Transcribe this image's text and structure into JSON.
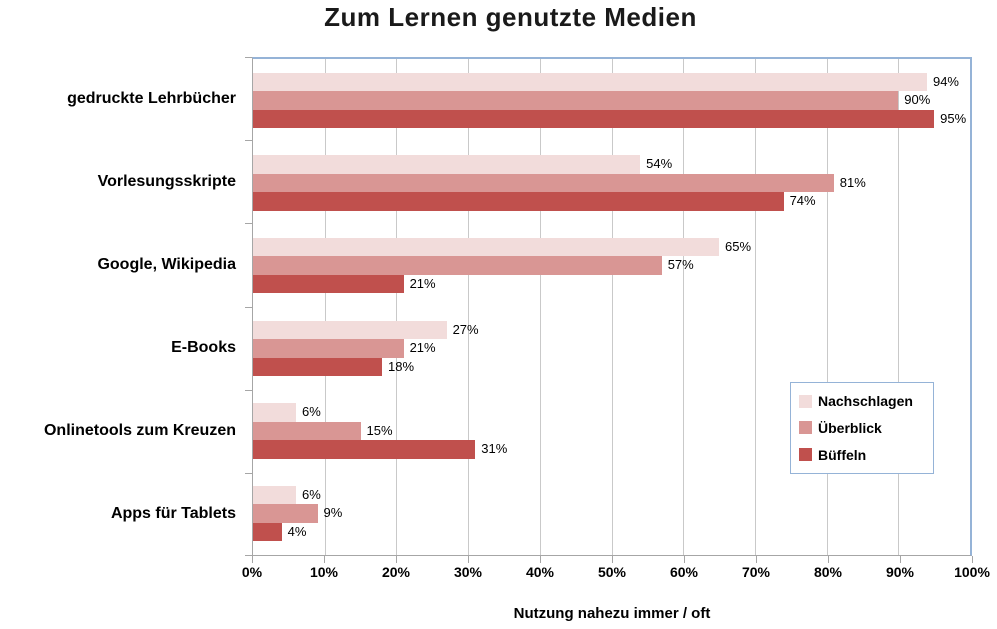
{
  "title": "Zum Lernen genutzte Medien",
  "chart_data": {
    "type": "bar",
    "orientation": "horizontal",
    "title": "Zum Lernen genutzte Medien",
    "xlabel": "Nutzung nahezu immer / oft",
    "ylabel": "",
    "categories": [
      "gedruckte Lehrbücher",
      "Vorlesungsskripte",
      "Google, Wikipedia",
      "E-Books",
      "Onlinetools zum Kreuzen",
      "Apps für Tablets"
    ],
    "series": [
      {
        "name": "Nachschlagen",
        "color": "#f2dcdb",
        "values": [
          94,
          54,
          65,
          27,
          6,
          6
        ]
      },
      {
        "name": "Überblick",
        "color": "#d99694",
        "values": [
          90,
          81,
          57,
          21,
          15,
          9
        ]
      },
      {
        "name": "Büffeln",
        "color": "#c0504d",
        "values": [
          95,
          74,
          21,
          18,
          31,
          4
        ]
      }
    ],
    "value_suffix": "%",
    "xlim": [
      0,
      100
    ],
    "xticks": [
      "0%",
      "10%",
      "20%",
      "30%",
      "40%",
      "50%",
      "60%",
      "70%",
      "80%",
      "90%",
      "100%"
    ],
    "grid": "vertical",
    "legend_position": "inside-right",
    "colors": {
      "plot_border": "#95b3d7",
      "gridline": "#c9c9c9",
      "axis_line": "#a6a6a6",
      "text": "#000000"
    }
  }
}
